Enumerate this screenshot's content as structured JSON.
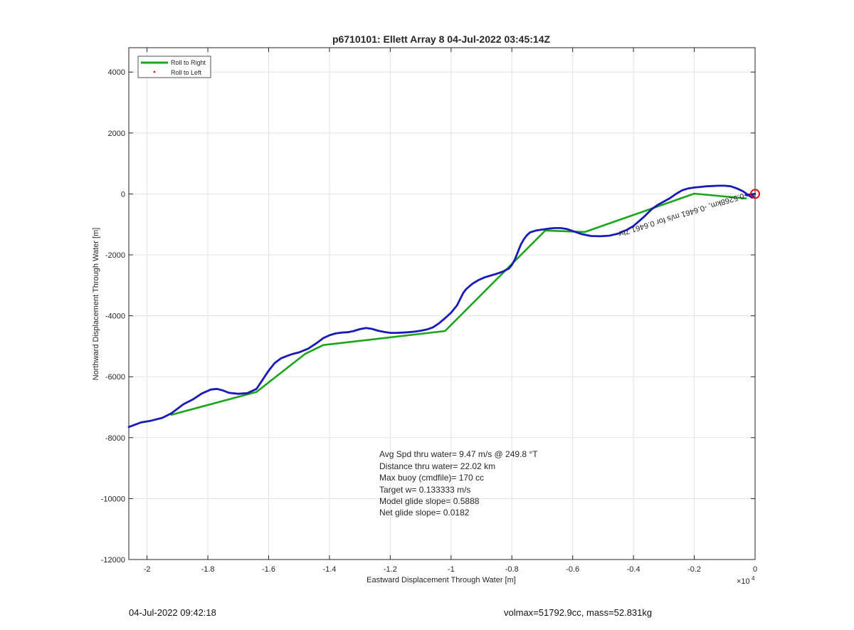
{
  "chart_data": {
    "type": "line",
    "title": "p6710101: Ellett Array 8 04-Jul-2022 03:45:14Z",
    "xlabel": "Eastward Displacement Through Water [m]",
    "ylabel": "Northward Displacement Through Water [m]",
    "x_exponent_label": "×10",
    "x_exponent_power": "4",
    "x_scale_factor": 10000,
    "xlim": [
      -2.06,
      0.0
    ],
    "ylim": [
      -12000,
      4800
    ],
    "xticks": [
      -2,
      -1.8,
      -1.6,
      -1.4,
      -1.2,
      -1,
      -0.8,
      -0.6,
      -0.4,
      -0.2,
      0
    ],
    "xtick_labels": [
      "-2",
      "-1.8",
      "-1.6",
      "-1.4",
      "-1.2",
      "-1",
      "-0.8",
      "-0.6",
      "-0.4",
      "-0.2",
      "0"
    ],
    "yticks": [
      -12000,
      -10000,
      -8000,
      -6000,
      -4000,
      -2000,
      0,
      2000,
      4000
    ],
    "ytick_labels": [
      "-12000",
      "-10000",
      "-8000",
      "-6000",
      "-4000",
      "-2000",
      "0",
      "2000",
      "4000"
    ],
    "grid": true,
    "legend": {
      "placement": "top-left",
      "entries": [
        {
          "label": "Roll to Right",
          "color": "#1aa51a",
          "style": "line"
        },
        {
          "label": "Roll to Left",
          "color": "#e01010",
          "style": "dot"
        }
      ]
    },
    "series": [
      {
        "name": "Roll to Right",
        "color": "#1aa51a",
        "x": [
          -1.92,
          -1.64,
          -1.48,
          -1.42,
          -1.02,
          -0.69,
          -0.56,
          -0.2,
          -0.03
        ],
        "y": [
          -7250,
          -6500,
          -5250,
          -4960,
          -4500,
          -1200,
          -1250,
          10,
          -150
        ]
      },
      {
        "color": "#1a1ab8",
        "x": [
          -2.06,
          -2.02,
          -1.99,
          -1.95,
          -1.92,
          -1.9,
          -1.88,
          -1.85,
          -1.82,
          -1.79,
          -1.77,
          -1.75,
          -1.73,
          -1.7,
          -1.67,
          -1.64,
          -1.62,
          -1.6,
          -1.58,
          -1.56,
          -1.54,
          -1.52,
          -1.5,
          -1.47,
          -1.44,
          -1.42,
          -1.4,
          -1.38,
          -1.36,
          -1.34,
          -1.32,
          -1.3,
          -1.28,
          -1.26,
          -1.24,
          -1.22,
          -1.2,
          -1.18,
          -1.16,
          -1.14,
          -1.12,
          -1.1,
          -1.08,
          -1.06,
          -1.04,
          -1.02,
          -1.0,
          -0.98,
          -0.97,
          -0.96,
          -0.95,
          -0.93,
          -0.91,
          -0.89,
          -0.87,
          -0.85,
          -0.83,
          -0.81,
          -0.8,
          -0.79,
          -0.78,
          -0.77,
          -0.76,
          -0.75,
          -0.74,
          -0.72,
          -0.7,
          -0.68,
          -0.66,
          -0.64,
          -0.62,
          -0.6,
          -0.57,
          -0.54,
          -0.51,
          -0.48,
          -0.45,
          -0.42,
          -0.4,
          -0.38,
          -0.36,
          -0.34,
          -0.32,
          -0.3,
          -0.28,
          -0.26,
          -0.24,
          -0.22,
          -0.2,
          -0.18,
          -0.16,
          -0.14,
          -0.12,
          -0.1,
          -0.08,
          -0.06,
          -0.04,
          -0.03,
          -0.02,
          -0.01,
          -0.005,
          -0.015,
          -0.03,
          -0.02,
          -0.01,
          0.0
        ],
        "y": [
          -7650,
          -7500,
          -7450,
          -7350,
          -7200,
          -7050,
          -6900,
          -6750,
          -6550,
          -6420,
          -6400,
          -6450,
          -6530,
          -6560,
          -6540,
          -6400,
          -6100,
          -5800,
          -5550,
          -5400,
          -5320,
          -5250,
          -5200,
          -5080,
          -4880,
          -4730,
          -4640,
          -4580,
          -4550,
          -4540,
          -4500,
          -4440,
          -4400,
          -4430,
          -4490,
          -4530,
          -4560,
          -4560,
          -4550,
          -4540,
          -4520,
          -4490,
          -4450,
          -4380,
          -4250,
          -4080,
          -3900,
          -3650,
          -3450,
          -3250,
          -3120,
          -2950,
          -2830,
          -2740,
          -2680,
          -2620,
          -2550,
          -2450,
          -2330,
          -2150,
          -1900,
          -1650,
          -1480,
          -1350,
          -1260,
          -1200,
          -1170,
          -1140,
          -1120,
          -1120,
          -1150,
          -1220,
          -1320,
          -1380,
          -1390,
          -1370,
          -1300,
          -1170,
          -1050,
          -880,
          -700,
          -500,
          -360,
          -250,
          -140,
          0,
          120,
          180,
          210,
          230,
          250,
          260,
          270,
          270,
          250,
          180,
          90,
          20,
          -50,
          -120,
          -80,
          -60,
          -40,
          -20,
          -10,
          0
        ]
      }
    ],
    "endpoint_marker": {
      "x": 0.0,
      "y": 0,
      "color": "#e01010"
    },
    "annotations": {
      "rotated_text": "-0.5268km, -0.6461 m/s for 0.6461 7hr",
      "stats": [
        "Avg Spd thru water=  9.47 m/s @ 249.8 °T",
        "Distance thru water= 22.02 km",
        "Max buoy (cmdfile)= 170 cc",
        "Target w= 0.133333 m/s",
        "Model glide slope= 0.5888",
        "Net glide slope= 0.0182"
      ]
    }
  },
  "footer": {
    "timestamp": "04-Jul-2022 09:42:18",
    "vol_mass": "volmax=51792.9cc, mass=52.831kg"
  }
}
